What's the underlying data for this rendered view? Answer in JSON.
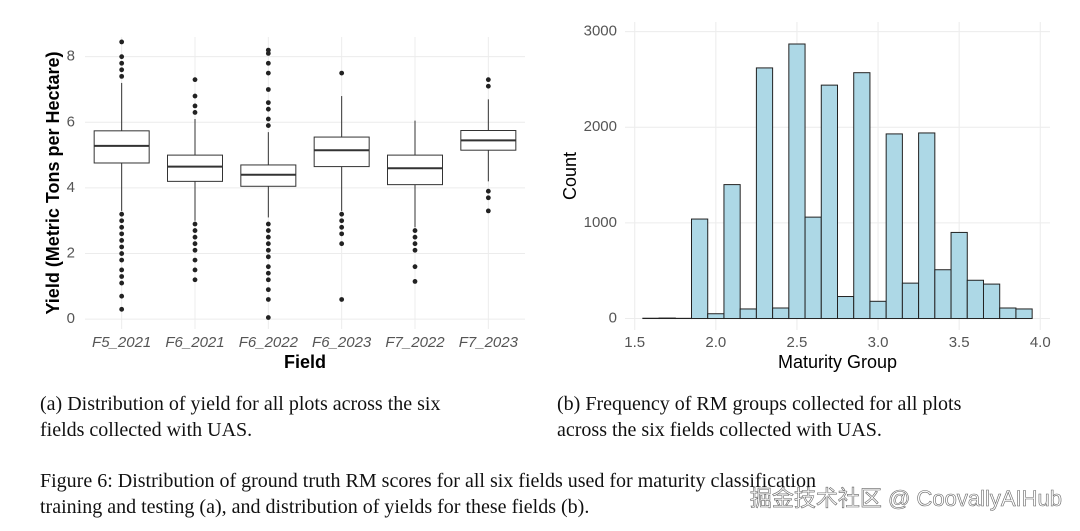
{
  "chart_data": [
    {
      "type": "box",
      "xlabel": "Field",
      "ylabel": "Yield (Metric Tons per Hectare)",
      "categories": [
        "F5_2021",
        "F6_2021",
        "F6_2022",
        "F6_2023",
        "F7_2022",
        "F7_2023"
      ],
      "min": [
        3.3,
        3.0,
        3.1,
        3.3,
        2.8,
        4.2
      ],
      "q1": [
        4.76,
        4.2,
        4.05,
        4.65,
        4.1,
        5.15
      ],
      "median": [
        5.28,
        4.65,
        4.4,
        5.15,
        4.6,
        5.45
      ],
      "q3": [
        5.74,
        5.0,
        4.7,
        5.55,
        5.0,
        5.75
      ],
      "max": [
        7.2,
        6.1,
        5.7,
        6.8,
        6.05,
        6.7
      ],
      "outliers": [
        [
          7.4,
          7.6,
          7.8,
          8.0,
          8.45,
          3.2,
          3.0,
          2.8,
          2.6,
          2.4,
          2.2,
          2.0,
          1.8,
          1.5,
          1.3,
          1.1,
          0.7,
          0.3
        ],
        [
          6.3,
          6.5,
          6.8,
          7.3,
          2.9,
          2.7,
          2.5,
          2.3,
          2.1,
          1.8,
          1.5,
          1.2
        ],
        [
          5.9,
          6.1,
          6.4,
          6.6,
          7.0,
          7.5,
          7.8,
          8.1,
          8.2,
          2.9,
          2.7,
          2.5,
          2.3,
          2.1,
          1.9,
          1.6,
          1.4,
          1.2,
          0.9,
          0.6,
          0.05
        ],
        [
          7.5,
          3.2,
          3.0,
          2.8,
          2.6,
          2.3,
          0.6
        ],
        [
          2.7,
          2.5,
          2.3,
          2.1,
          1.6,
          1.15
        ],
        [
          7.1,
          7.3,
          3.9,
          3.7,
          3.3
        ]
      ],
      "box_color": "#ffffff",
      "line_color": "#333333",
      "ylim": [
        -0.3,
        8.6
      ],
      "yticks": [
        0,
        2,
        4,
        6,
        8
      ],
      "grid": true
    },
    {
      "type": "histogram",
      "xlabel": "Maturity Group",
      "ylabel": "Count",
      "bins": [
        1.55,
        1.65,
        1.75,
        1.85,
        1.95,
        2.05,
        2.15,
        2.25,
        2.35,
        2.45,
        2.55,
        2.65,
        2.75,
        2.85,
        2.95,
        3.05,
        3.15,
        3.25,
        3.35,
        3.45,
        3.55,
        3.65,
        3.75,
        3.85,
        3.95
      ],
      "counts": [
        3,
        5,
        2,
        1040,
        50,
        1400,
        100,
        2620,
        110,
        2870,
        1060,
        2440,
        230,
        2570,
        180,
        1930,
        370,
        1940,
        510,
        900,
        400,
        360,
        110,
        100
      ],
      "color": "#add8e6",
      "xlim": [
        1.44,
        4.06
      ],
      "xticks": [
        1.5,
        {
          "value": 2,
          "label": "2.0"
        },
        2.5,
        {
          "value": 3,
          "label": "3.0"
        },
        3.5,
        {
          "value": 4,
          "label": "4.0"
        }
      ],
      "ylim": [
        -120,
        3100
      ],
      "yticks": [
        0,
        1000,
        2000,
        3000
      ],
      "grid": true
    }
  ],
  "captions": {
    "a": [
      "(a) Distribution of yield for all plots across the six",
      "fields collected with UAS."
    ],
    "b": [
      "(b) Frequency of RM groups collected for all plots",
      "across the six fields collected with UAS."
    ],
    "figure": [
      "Figure 6: Distribution of ground truth RM scores for all six fields used for maturity classification",
      "training and testing (a), and distribution of yields for these fields (b)."
    ]
  },
  "watermark": "掘金技术社区 @ CoovallyAIHub"
}
